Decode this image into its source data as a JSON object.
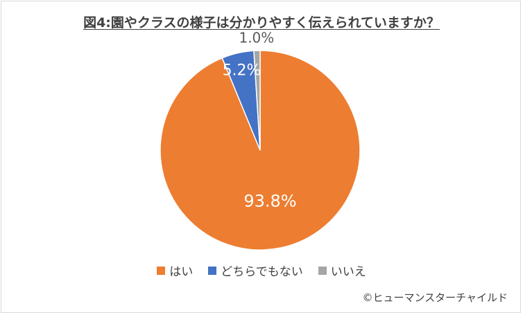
{
  "chart_data": {
    "type": "pie",
    "title": "図4:園やクラスの様子は分かりやすく伝えられていますか？",
    "categories": [
      "はい",
      "どちらでもない",
      "いいえ"
    ],
    "values": [
      93.8,
      5.2,
      1.0
    ],
    "labels": [
      "93.8%",
      "5.2%",
      "1.0%"
    ],
    "colors": [
      "#ED7D31",
      "#4472C4",
      "#A5A5A5"
    ],
    "legend": "bottom"
  },
  "credit": "©ヒューマンスターチャイルド"
}
